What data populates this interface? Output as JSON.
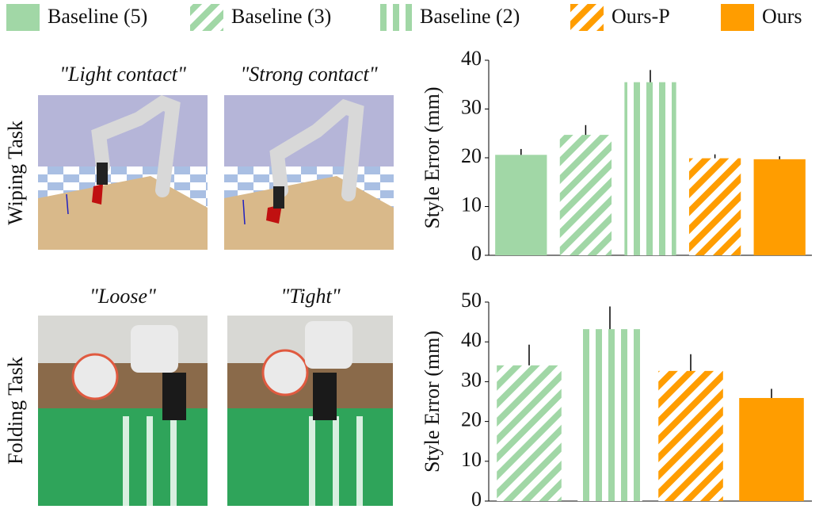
{
  "panels": [
    {
      "task": "Wiping Task",
      "captions": [
        "\"Light contact\"",
        "\"Strong contact\""
      ]
    },
    {
      "task": "Folding Task",
      "captions": [
        "\"Loose\"",
        "\"Tight\""
      ]
    }
  ],
  "chart_data": [
    {
      "type": "bar",
      "ylabel": "Style Error (mm)",
      "ylim": [
        0,
        40
      ],
      "yticks": [
        0,
        10,
        20,
        30,
        40
      ],
      "series": [
        {
          "name": "Baseline (5)",
          "color": "#a1d7a6",
          "pattern": "solid",
          "values": [
            20.6
          ],
          "errors": [
            1.2
          ]
        },
        {
          "name": "Baseline (3)",
          "color": "#a1d7a6",
          "pattern": "diagonal",
          "values": [
            24.7
          ],
          "errors": [
            2.0
          ]
        },
        {
          "name": "Baseline (2)",
          "color": "#a1d7a6",
          "pattern": "vertical",
          "values": [
            35.5
          ],
          "errors": [
            2.5
          ]
        },
        {
          "name": "Ours-P",
          "color": "#ff9d00",
          "pattern": "diagonal",
          "values": [
            19.9
          ],
          "errors": [
            0.8
          ]
        },
        {
          "name": "Ours",
          "color": "#ff9d00",
          "pattern": "solid",
          "values": [
            19.7
          ],
          "errors": [
            0.6
          ]
        }
      ]
    },
    {
      "type": "bar",
      "ylabel": "Style Error (mm)",
      "ylim": [
        0,
        50
      ],
      "yticks": [
        0,
        10,
        20,
        30,
        40,
        50
      ],
      "series": [
        {
          "name": "Baseline (3)",
          "color": "#a1d7a6",
          "pattern": "diagonal",
          "values": [
            34.1
          ],
          "errors": [
            5.2
          ]
        },
        {
          "name": "Baseline (2)",
          "color": "#a1d7a6",
          "pattern": "vertical",
          "values": [
            43.2
          ],
          "errors": [
            5.7
          ]
        },
        {
          "name": "Ours-P",
          "color": "#ff9d00",
          "pattern": "diagonal",
          "values": [
            32.7
          ],
          "errors": [
            4.2
          ]
        },
        {
          "name": "Ours",
          "color": "#ff9d00",
          "pattern": "solid",
          "values": [
            25.9
          ],
          "errors": [
            2.3
          ]
        }
      ]
    }
  ]
}
